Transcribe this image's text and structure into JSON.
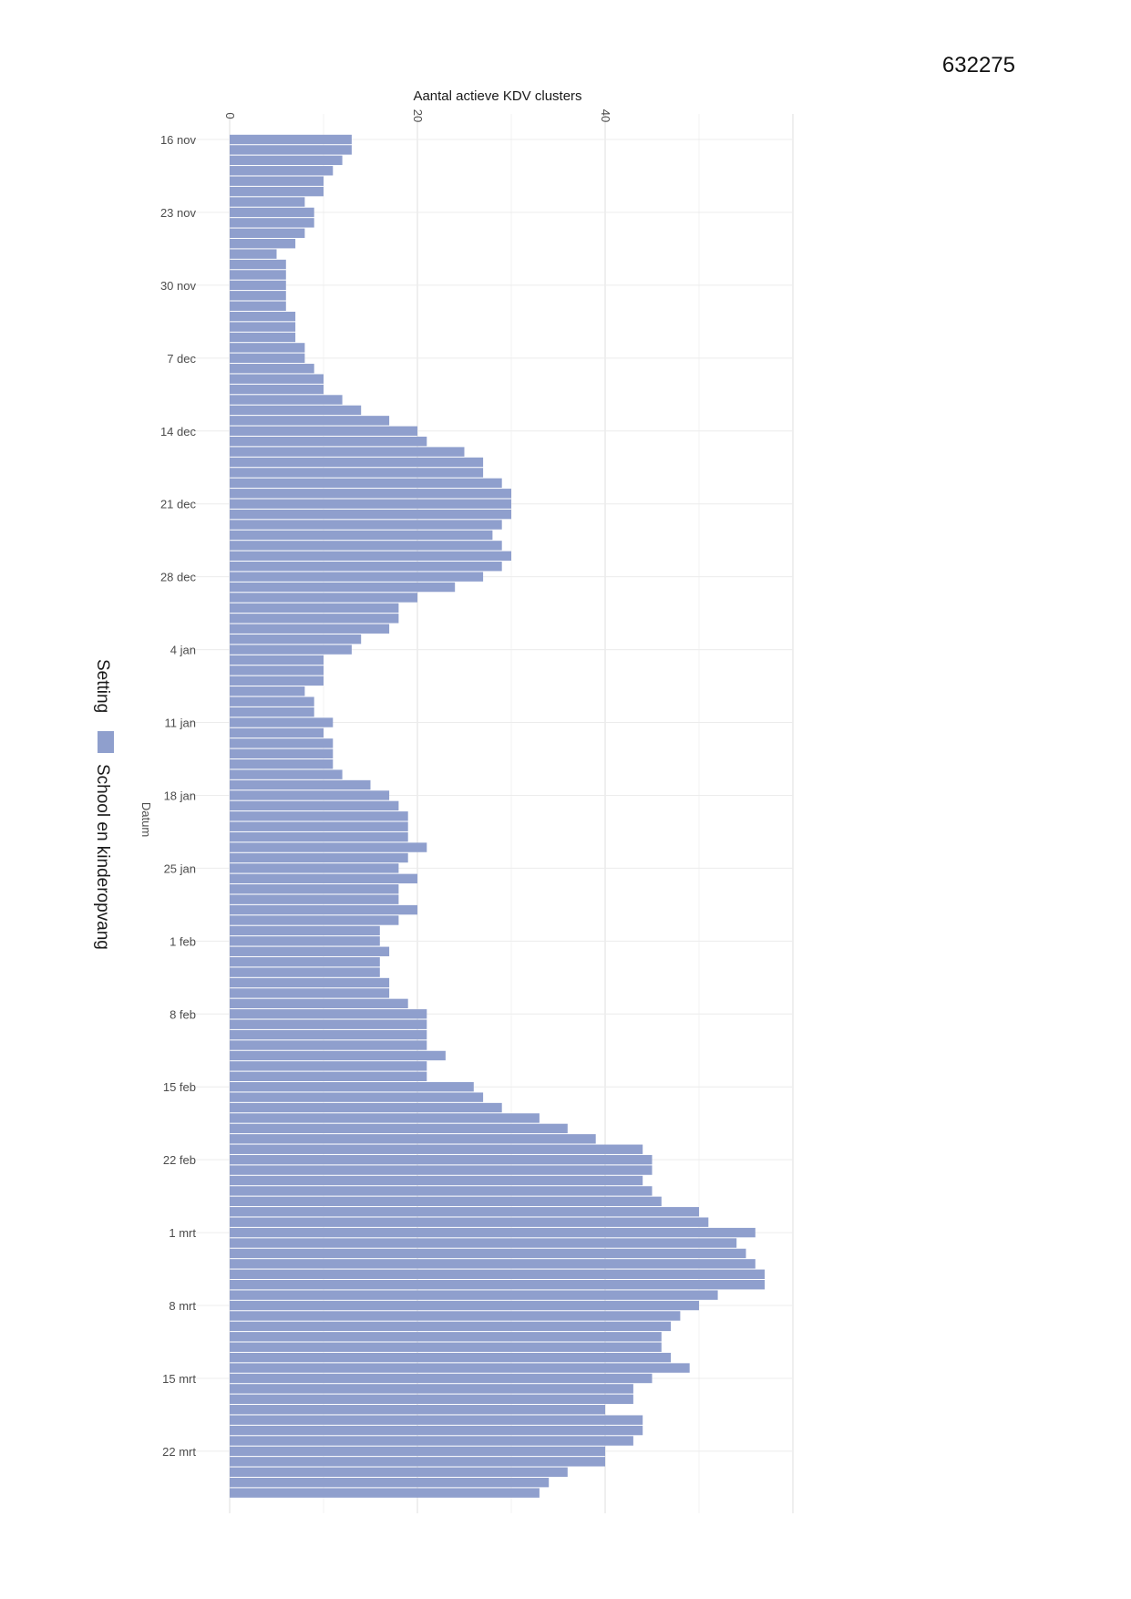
{
  "page_id": "632275",
  "chart_data": {
    "type": "bar",
    "orientation": "horizontal",
    "xlabel": "Aantal actieve KDV clusters",
    "ylabel": "Datum",
    "x_ticks": [
      "0",
      "20",
      "40"
    ],
    "xlim": [
      0,
      60
    ],
    "y_ticks": [
      "16 nov",
      "23 nov",
      "30 nov",
      "7 dec",
      "14 dec",
      "21 dec",
      "28 dec",
      "4 jan",
      "11 jan",
      "18 jan",
      "25 jan",
      "1 feb",
      "8 feb",
      "15 feb",
      "22 feb",
      "1 mrt",
      "8 mrt",
      "15 mrt",
      "22 mrt"
    ],
    "legend_title": "Setting",
    "legend_position": "left",
    "grid": true,
    "series": [
      {
        "name": "School en kinderopvang",
        "color": "#8f9fcd",
        "values": [
          13,
          13,
          12,
          11,
          10,
          10,
          8,
          9,
          9,
          8,
          7,
          5,
          6,
          6,
          6,
          6,
          6,
          7,
          7,
          7,
          8,
          8,
          9,
          10,
          10,
          12,
          14,
          17,
          20,
          21,
          25,
          27,
          27,
          29,
          30,
          30,
          30,
          29,
          28,
          29,
          30,
          29,
          27,
          24,
          20,
          18,
          18,
          17,
          14,
          13,
          10,
          10,
          10,
          8,
          9,
          9,
          11,
          10,
          11,
          11,
          11,
          12,
          15,
          17,
          18,
          19,
          19,
          19,
          21,
          19,
          18,
          20,
          18,
          18,
          20,
          18,
          16,
          16,
          17,
          16,
          16,
          17,
          17,
          19,
          21,
          21,
          21,
          21,
          23,
          21,
          21,
          26,
          27,
          29,
          33,
          36,
          39,
          44,
          45,
          45,
          44,
          45,
          46,
          50,
          51,
          56,
          54,
          55,
          56,
          57,
          57,
          52,
          50,
          48,
          47,
          46,
          46,
          47,
          49,
          45,
          43,
          43,
          40,
          44,
          44,
          43,
          40,
          40,
          36,
          34,
          33
        ]
      }
    ]
  }
}
